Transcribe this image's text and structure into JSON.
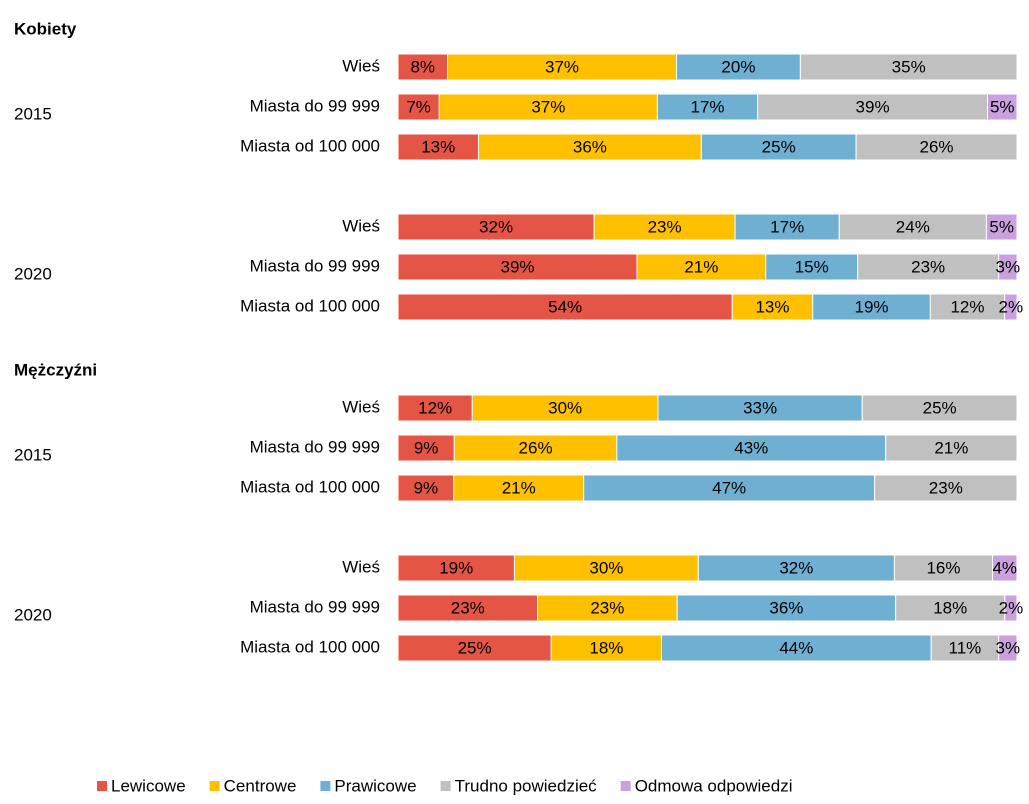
{
  "chart_data": {
    "type": "bar",
    "orientation": "horizontal",
    "stacking": "percent",
    "series": [
      {
        "name": "Lewicowe",
        "color": "#e55545"
      },
      {
        "name": "Centrowe",
        "color": "#ffc000"
      },
      {
        "name": "Prawicowe",
        "color": "#6fafd2"
      },
      {
        "name": "Trudno powiedzieć",
        "color": "#c0c0c0"
      },
      {
        "name": "Odmowa odpowiedzi",
        "color": "#c9a1de"
      }
    ],
    "sections": [
      {
        "title": "Kobiety",
        "groups": [
          {
            "label": "2015",
            "bars": [
              {
                "category": "Wieś",
                "values": [
                  8,
                  37,
                  20,
                  35,
                  null
                ],
                "value_labels": [
                  "8%",
                  "37%",
                  "20%",
                  "35%",
                  null
                ]
              },
              {
                "category": "Miasta do 99 999",
                "values": [
                  7,
                  37,
                  17,
                  39,
                  5
                ],
                "value_labels": [
                  "7%",
                  "37%",
                  "17%",
                  "39%",
                  "5%"
                ]
              },
              {
                "category": "Miasta od 100 000",
                "values": [
                  13,
                  36,
                  25,
                  26,
                  null
                ],
                "value_labels": [
                  "13%",
                  "36%",
                  "25%",
                  "26%",
                  null
                ]
              }
            ]
          },
          {
            "label": "2020",
            "bars": [
              {
                "category": "Wieś",
                "values": [
                  32,
                  23,
                  17,
                  24,
                  5
                ],
                "value_labels": [
                  "32%",
                  "23%",
                  "17%",
                  "24%",
                  "5%"
                ]
              },
              {
                "category": "Miasta do 99 999",
                "values": [
                  39,
                  21,
                  15,
                  23,
                  3
                ],
                "value_labels": [
                  "39%",
                  "21%",
                  "15%",
                  "23%",
                  "3%"
                ]
              },
              {
                "category": "Miasta od 100 000",
                "values": [
                  54,
                  13,
                  19,
                  12,
                  2
                ],
                "value_labels": [
                  "54%",
                  "13%",
                  "19%",
                  "12%",
                  "2%"
                ]
              }
            ]
          }
        ]
      },
      {
        "title": "Mężczyźni",
        "groups": [
          {
            "label": "2015",
            "bars": [
              {
                "category": "Wieś",
                "values": [
                  12,
                  30,
                  33,
                  25,
                  null
                ],
                "value_labels": [
                  "12%",
                  "30%",
                  "33%",
                  "25%",
                  null
                ]
              },
              {
                "category": "Miasta do 99 999",
                "values": [
                  9,
                  26,
                  43,
                  21,
                  null
                ],
                "value_labels": [
                  "9%",
                  "26%",
                  "43%",
                  "21%",
                  null
                ]
              },
              {
                "category": "Miasta od 100 000",
                "values": [
                  9,
                  21,
                  47,
                  23,
                  null
                ],
                "value_labels": [
                  "9%",
                  "21%",
                  "47%",
                  "23%",
                  null
                ]
              }
            ]
          },
          {
            "label": "2020",
            "bars": [
              {
                "category": "Wieś",
                "values": [
                  19,
                  30,
                  32,
                  16,
                  4
                ],
                "value_labels": [
                  "19%",
                  "30%",
                  "32%",
                  "16%",
                  "4%"
                ]
              },
              {
                "category": "Miasta do 99 999",
                "values": [
                  23,
                  23,
                  36,
                  18,
                  2
                ],
                "value_labels": [
                  "23%",
                  "23%",
                  "36%",
                  "18%",
                  "2%"
                ]
              },
              {
                "category": "Miasta od 100 000",
                "values": [
                  25,
                  18,
                  44,
                  11,
                  3
                ],
                "value_labels": [
                  "25%",
                  "18%",
                  "44%",
                  "11%",
                  "3%"
                ]
              }
            ]
          }
        ]
      }
    ]
  }
}
